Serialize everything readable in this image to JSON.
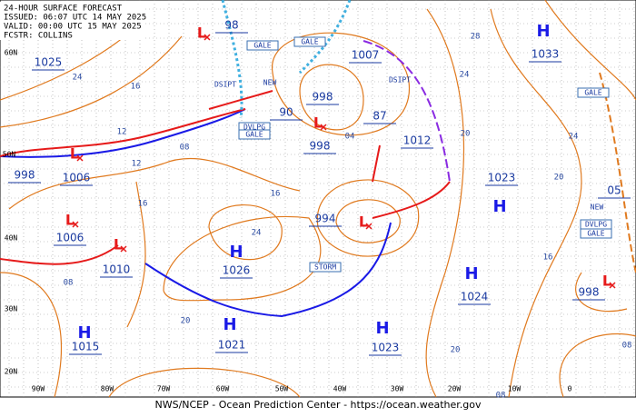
{
  "header": {
    "lines": [
      "24-HOUR SURFACE FORECAST",
      "ISSUED: 06:07 UTC 14 MAY 2025",
      "VALID:  00:00 UTC 15 MAY 2025",
      "FCSTR:  COLLINS"
    ]
  },
  "footer": "NWS/NCEP - Ocean Prediction Center - https://ocean.weather.gov",
  "lat_labels": [
    "60N",
    "50N",
    "40N",
    "30N",
    "20N"
  ],
  "lon_labels": [
    "90W",
    "80W",
    "70W",
    "60W",
    "50W",
    "40W",
    "30W",
    "20W",
    "10W",
    "0"
  ],
  "high_symbols": [
    "H",
    "H",
    "H",
    "H",
    "H",
    "H",
    "H"
  ],
  "low_symbols": [
    "L",
    "L",
    "L",
    "L",
    "L",
    "L",
    "L"
  ],
  "pressures": [
    "98",
    "1025",
    "1007",
    "998",
    "90",
    "998",
    "87",
    "1012",
    "998",
    "1006",
    "994",
    "1006",
    "1010",
    "1033",
    "1023",
    "1024",
    "1026",
    "1021",
    "1023",
    "1015",
    "998",
    "05"
  ],
  "tags": [
    "GALE",
    "GALE",
    "DSIPT",
    "NEW",
    "DSIPT",
    "DVLPG",
    "GALE",
    "STORM",
    "GALE",
    "NEW",
    "DVLPG",
    "GALE"
  ],
  "isobar_labels": [
    "24",
    "16",
    "12",
    "08",
    "12",
    "16",
    "16",
    "24",
    "04",
    "28",
    "24",
    "20",
    "24",
    "20",
    "16",
    "08",
    "20",
    "20",
    "08",
    "08"
  ]
}
